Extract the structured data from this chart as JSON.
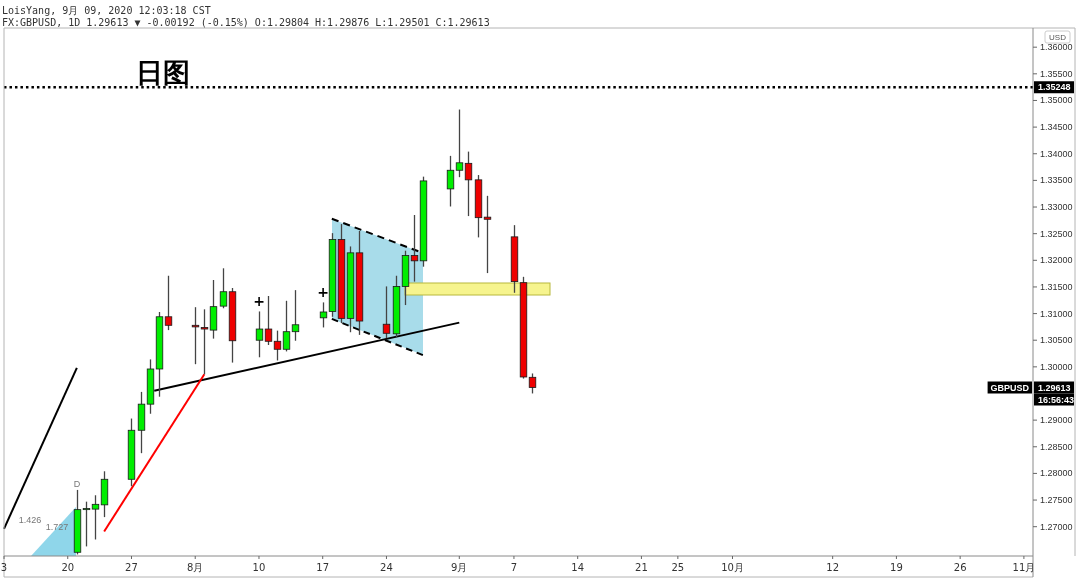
{
  "chart_data": {
    "type": "candlestick",
    "title": "日图",
    "ylabel": "USD",
    "x": [
      "2020-07-21",
      "2020-07-22",
      "2020-07-23",
      "2020-07-24",
      "2020-07-27",
      "2020-07-28",
      "2020-07-29",
      "2020-07-30",
      "2020-07-31",
      "2020-08-03",
      "2020-08-04",
      "2020-08-05",
      "2020-08-06",
      "2020-08-07",
      "2020-08-10",
      "2020-08-11",
      "2020-08-12",
      "2020-08-13",
      "2020-08-14",
      "2020-08-17",
      "2020-08-18",
      "2020-08-19",
      "2020-08-20",
      "2020-08-21",
      "2020-08-24",
      "2020-08-25",
      "2020-08-26",
      "2020-08-27",
      "2020-08-28",
      "2020-08-31",
      "2020-09-01",
      "2020-09-02",
      "2020-09-03",
      "2020-09-04",
      "2020-09-07",
      "2020-09-08",
      "2020-09-09"
    ],
    "ohlc": [
      [
        1.2652,
        1.2769,
        1.2648,
        1.2732
      ],
      [
        1.2732,
        1.2747,
        1.2663,
        1.2734
      ],
      [
        1.2733,
        1.2759,
        1.2676,
        1.2742
      ],
      [
        1.2741,
        1.2804,
        1.2718,
        1.2789
      ],
      [
        1.2789,
        1.2903,
        1.2776,
        1.2881
      ],
      [
        1.2881,
        1.2953,
        1.2838,
        1.293
      ],
      [
        1.293,
        1.3014,
        1.2912,
        1.2996
      ],
      [
        1.2996,
        1.3103,
        1.2944,
        1.3094
      ],
      [
        1.3094,
        1.3171,
        1.3069,
        1.3078
      ],
      [
        1.3078,
        1.3112,
        1.3005,
        1.3075
      ],
      [
        1.3074,
        1.3108,
        1.2986,
        1.3071
      ],
      [
        1.3069,
        1.3163,
        1.3053,
        1.3113
      ],
      [
        1.3114,
        1.3185,
        1.311,
        1.3141
      ],
      [
        1.3141,
        1.3148,
        1.3008,
        1.3049
      ],
      [
        1.305,
        1.3104,
        1.3018,
        1.3071
      ],
      [
        1.3071,
        1.3133,
        1.3041,
        1.3048
      ],
      [
        1.3048,
        1.3068,
        1.3012,
        1.3033
      ],
      [
        1.3033,
        1.3124,
        1.3029,
        1.3066
      ],
      [
        1.3066,
        1.3144,
        1.3049,
        1.3079
      ],
      [
        1.3092,
        1.3121,
        1.3074,
        1.3103
      ],
      [
        1.3104,
        1.3251,
        1.3094,
        1.3239
      ],
      [
        1.3239,
        1.3268,
        1.3082,
        1.3091
      ],
      [
        1.3091,
        1.3226,
        1.3065,
        1.3214
      ],
      [
        1.3214,
        1.3255,
        1.306,
        1.3086
      ],
      [
        1.308,
        1.3151,
        1.3054,
        1.3063
      ],
      [
        1.3062,
        1.3171,
        1.3056,
        1.3151
      ],
      [
        1.3151,
        1.3218,
        1.3116,
        1.3209
      ],
      [
        1.3209,
        1.3285,
        1.316,
        1.3199
      ],
      [
        1.3199,
        1.3357,
        1.3188,
        1.3349
      ],
      [
        1.3334,
        1.3396,
        1.3301,
        1.3369
      ],
      [
        1.3369,
        1.3483,
        1.3356,
        1.3383
      ],
      [
        1.3382,
        1.3404,
        1.3283,
        1.3351
      ],
      [
        1.3351,
        1.336,
        1.3243,
        1.328
      ],
      [
        1.3281,
        1.3321,
        1.3176,
        1.3277
      ],
      [
        1.3244,
        1.3266,
        1.3139,
        1.316
      ],
      [
        1.3158,
        1.3169,
        1.2978,
        1.2981
      ],
      [
        1.29804,
        1.29876,
        1.29501,
        1.29613
      ]
    ],
    "colors": [
      "#00ee00",
      "#00ee00",
      "#00ee00",
      "#00ee00",
      "#00ee00",
      "#00ee00",
      "#00ee00",
      "#00ee00",
      "#ee0000",
      "#ee0000",
      "#ee0000",
      "#00ee00",
      "#00ee00",
      "#ee0000",
      "#00ee00",
      "#ee0000",
      "#ee0000",
      "#00ee00",
      "#00ee00",
      "#00ee00",
      "#00ee00",
      "#ee0000",
      "#00ee00",
      "#ee0000",
      "#ee0000",
      "#00ee00",
      "#00ee00",
      "#ee0000",
      "#00ee00",
      "#00ee00",
      "#00ee00",
      "#ee0000",
      "#ee0000",
      "#ee0000",
      "#ee0000",
      "#ee0000",
      "#ee0000"
    ],
    "series": [
      {
        "type": "line",
        "x": [
          "2020-07-13",
          "2020-07-21"
        ],
        "values": [
          1.2696,
          1.2998
        ],
        "color": "#000000",
        "line_style": "solid"
      },
      {
        "type": "line",
        "x": [
          "2020-07-29T12:00",
          "2020-09-01"
        ],
        "values": [
          1.2955,
          1.3083
        ],
        "color": "#000000",
        "line_style": "solid"
      },
      {
        "type": "line",
        "x": [
          "2020-07-24",
          "2020-08-04"
        ],
        "values": [
          1.2691,
          1.2986
        ],
        "color": "#ff0000",
        "line_style": "solid"
      },
      {
        "type": "line",
        "x": [
          "2020-08-18",
          "2020-08-27T12:00"
        ],
        "values": [
          1.3278,
          1.3217
        ],
        "color": "#000000",
        "line_style": "dashed"
      },
      {
        "type": "line",
        "x": [
          "2020-08-18",
          "2020-08-28"
        ],
        "values": [
          1.309,
          1.3022
        ],
        "color": "#000000",
        "line_style": "dashed"
      }
    ],
    "xlim": [
      "2020-07-13",
      "2020-11-03"
    ],
    "xticks": [
      {
        "value": "2020-07-13",
        "label": "3"
      },
      {
        "value": "2020-07-20",
        "label": "20"
      },
      {
        "value": "2020-07-27",
        "label": "27"
      },
      {
        "value": "2020-08-03",
        "label": "8月"
      },
      {
        "value": "2020-08-10",
        "label": "10"
      },
      {
        "value": "2020-08-17",
        "label": "17"
      },
      {
        "value": "2020-08-24",
        "label": "24"
      },
      {
        "value": "2020-09-01",
        "label": "9月"
      },
      {
        "value": "2020-09-07",
        "label": "7"
      },
      {
        "value": "2020-09-14",
        "label": "14"
      },
      {
        "value": "2020-09-21",
        "label": "21"
      },
      {
        "value": "2020-09-25",
        "label": "25"
      },
      {
        "value": "2020-10-01",
        "label": "10月"
      },
      {
        "value": "2020-10-12",
        "label": "12"
      },
      {
        "value": "2020-10-19",
        "label": "19"
      },
      {
        "value": "2020-10-26",
        "label": "26"
      },
      {
        "value": "2020-11-02",
        "label": "11月"
      }
    ],
    "ylim": [
      1.2645,
      1.3636
    ],
    "yticks": [
      {
        "value": 1.27,
        "label": "1.27000"
      },
      {
        "value": 1.275,
        "label": "1.27500"
      },
      {
        "value": 1.28,
        "label": "1.28000"
      },
      {
        "value": 1.285,
        "label": "1.28500"
      },
      {
        "value": 1.29,
        "label": "1.29000"
      },
      {
        "value": 1.3,
        "label": "1.30000"
      },
      {
        "value": 1.305,
        "label": "1.30500"
      },
      {
        "value": 1.31,
        "label": "1.31000"
      },
      {
        "value": 1.315,
        "label": "1.31500"
      },
      {
        "value": 1.32,
        "label": "1.32000"
      },
      {
        "value": 1.325,
        "label": "1.32500"
      },
      {
        "value": 1.33,
        "label": "1.33000"
      },
      {
        "value": 1.335,
        "label": "1.33500"
      },
      {
        "value": 1.34,
        "label": "1.34000"
      },
      {
        "value": 1.345,
        "label": "1.34500"
      },
      {
        "value": 1.35,
        "label": "1.35000"
      },
      {
        "value": 1.355,
        "label": "1.35500"
      },
      {
        "value": 1.36,
        "label": "1.36000"
      }
    ],
    "ref_lines": [
      {
        "axis": "y",
        "value": 1.35248,
        "label": "1.35248",
        "color": "#000000",
        "line_style": "dotted"
      }
    ],
    "annotations": [
      "LoisYang, 9月 09, 2020 12:03:18 CST",
      "FX:GBPUSD, 1D 1.29613 ▼ -0.00192 (-0.15%) O:1.29804 H:1.29876 L:1.29501 C:1.29613",
      "D",
      "1.426",
      "1.727",
      "+",
      "+",
      "GBPUSD",
      "1.29613",
      "16:56:43"
    ]
  }
}
